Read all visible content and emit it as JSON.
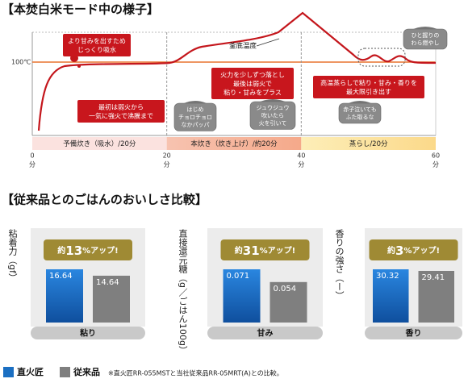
{
  "diagram": {
    "title": "【本焚白米モード中の様子】",
    "temp_label": "100℃",
    "curve_label": "釜底温度",
    "xticks": [
      0,
      20,
      40,
      60
    ],
    "x_unit": "分",
    "phases": [
      "予備炊き（吸水）/20分",
      "本炊き（炊き上げ）/約20分",
      "蒸らし/20分"
    ],
    "callouts": [
      [
        "より甘みを出すため",
        "じっくり吸水"
      ],
      [
        "最初は弱火から",
        "一気に強火で沸騰まで"
      ],
      [
        "火力を少しずつ落とし",
        "最後は弱火で",
        "粘り・甘みをプラス"
      ],
      [
        "高温蒸らしで粘り・甘み・香りを",
        "最大限引き出す"
      ]
    ],
    "bubbles": [
      [
        "はじめ",
        "チョロチョロ",
        "なかパッパ"
      ],
      [
        "ジュウジュウ",
        "吹いたら",
        "火を引いて"
      ],
      [
        "赤子泣いても",
        "ふた取るな"
      ],
      [
        "ひと握りの",
        "わら燃やし"
      ]
    ]
  },
  "comparison": {
    "title": "【従来品とのごはんのおいしさ比較】",
    "legend": [
      {
        "name": "直火匠",
        "color": "#1b6fc2"
      },
      {
        "name": "従来品",
        "color": "#7f7f7f"
      }
    ],
    "panels": [
      {
        "ylabel": "粘着力（gf）",
        "badge": {
          "prefix": "約",
          "value": 13,
          "suffix": "%アップ!"
        },
        "values": [
          16.64,
          14.64
        ],
        "category": "粘り"
      },
      {
        "ylabel": "直接還元糖（g／ごはん100g）",
        "badge": {
          "prefix": "約",
          "value": 31,
          "suffix": "%アップ!"
        },
        "values": [
          0.071,
          0.054
        ],
        "category": "甘み"
      },
      {
        "ylabel": "香りの強さ（ー）",
        "badge": {
          "prefix": "約",
          "value": 3,
          "suffix": "%アップ!"
        },
        "values": [
          30.32,
          29.41
        ],
        "category": "香り"
      }
    ],
    "footnote": "※直火匠RR-055MSTと当社従来品RR-05MRT(A)との比較。"
  }
}
